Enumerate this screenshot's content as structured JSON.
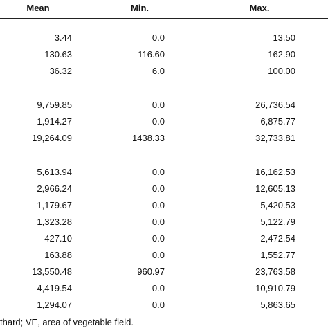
{
  "table": {
    "header": [
      "Mean",
      "Min.",
      "Max."
    ],
    "groups": [
      [
        [
          "3.44",
          "0.0",
          "13.50"
        ],
        [
          "130.63",
          "116.60",
          "162.90"
        ],
        [
          "36.32",
          "6.0",
          "100.00"
        ]
      ],
      [
        [
          "9,759.85",
          "0.0",
          "26,736.54"
        ],
        [
          "1,914.27",
          "0.0",
          "6,875.77"
        ],
        [
          "19,264.09",
          "1438.33",
          "32,733.81"
        ]
      ],
      [
        [
          "5,613.94",
          "0.0",
          "16,162.53"
        ],
        [
          "2,966.24",
          "0.0",
          "12,605.13"
        ],
        [
          "1,179.67",
          "0.0",
          "5,420.53"
        ],
        [
          "1,323.28",
          "0.0",
          "5,122.79"
        ],
        [
          "427.10",
          "0.0",
          "2,472.54"
        ],
        [
          "163.88",
          "0.0",
          "1,552.77"
        ],
        [
          "13,550.48",
          "960.97",
          "23,763.58"
        ],
        [
          "4,419.54",
          "0.0",
          "10,910.79"
        ],
        [
          "1,294.07",
          "0.0",
          "5,863.65"
        ]
      ]
    ]
  },
  "footnote": "thard; VE, area of vegetable field."
}
